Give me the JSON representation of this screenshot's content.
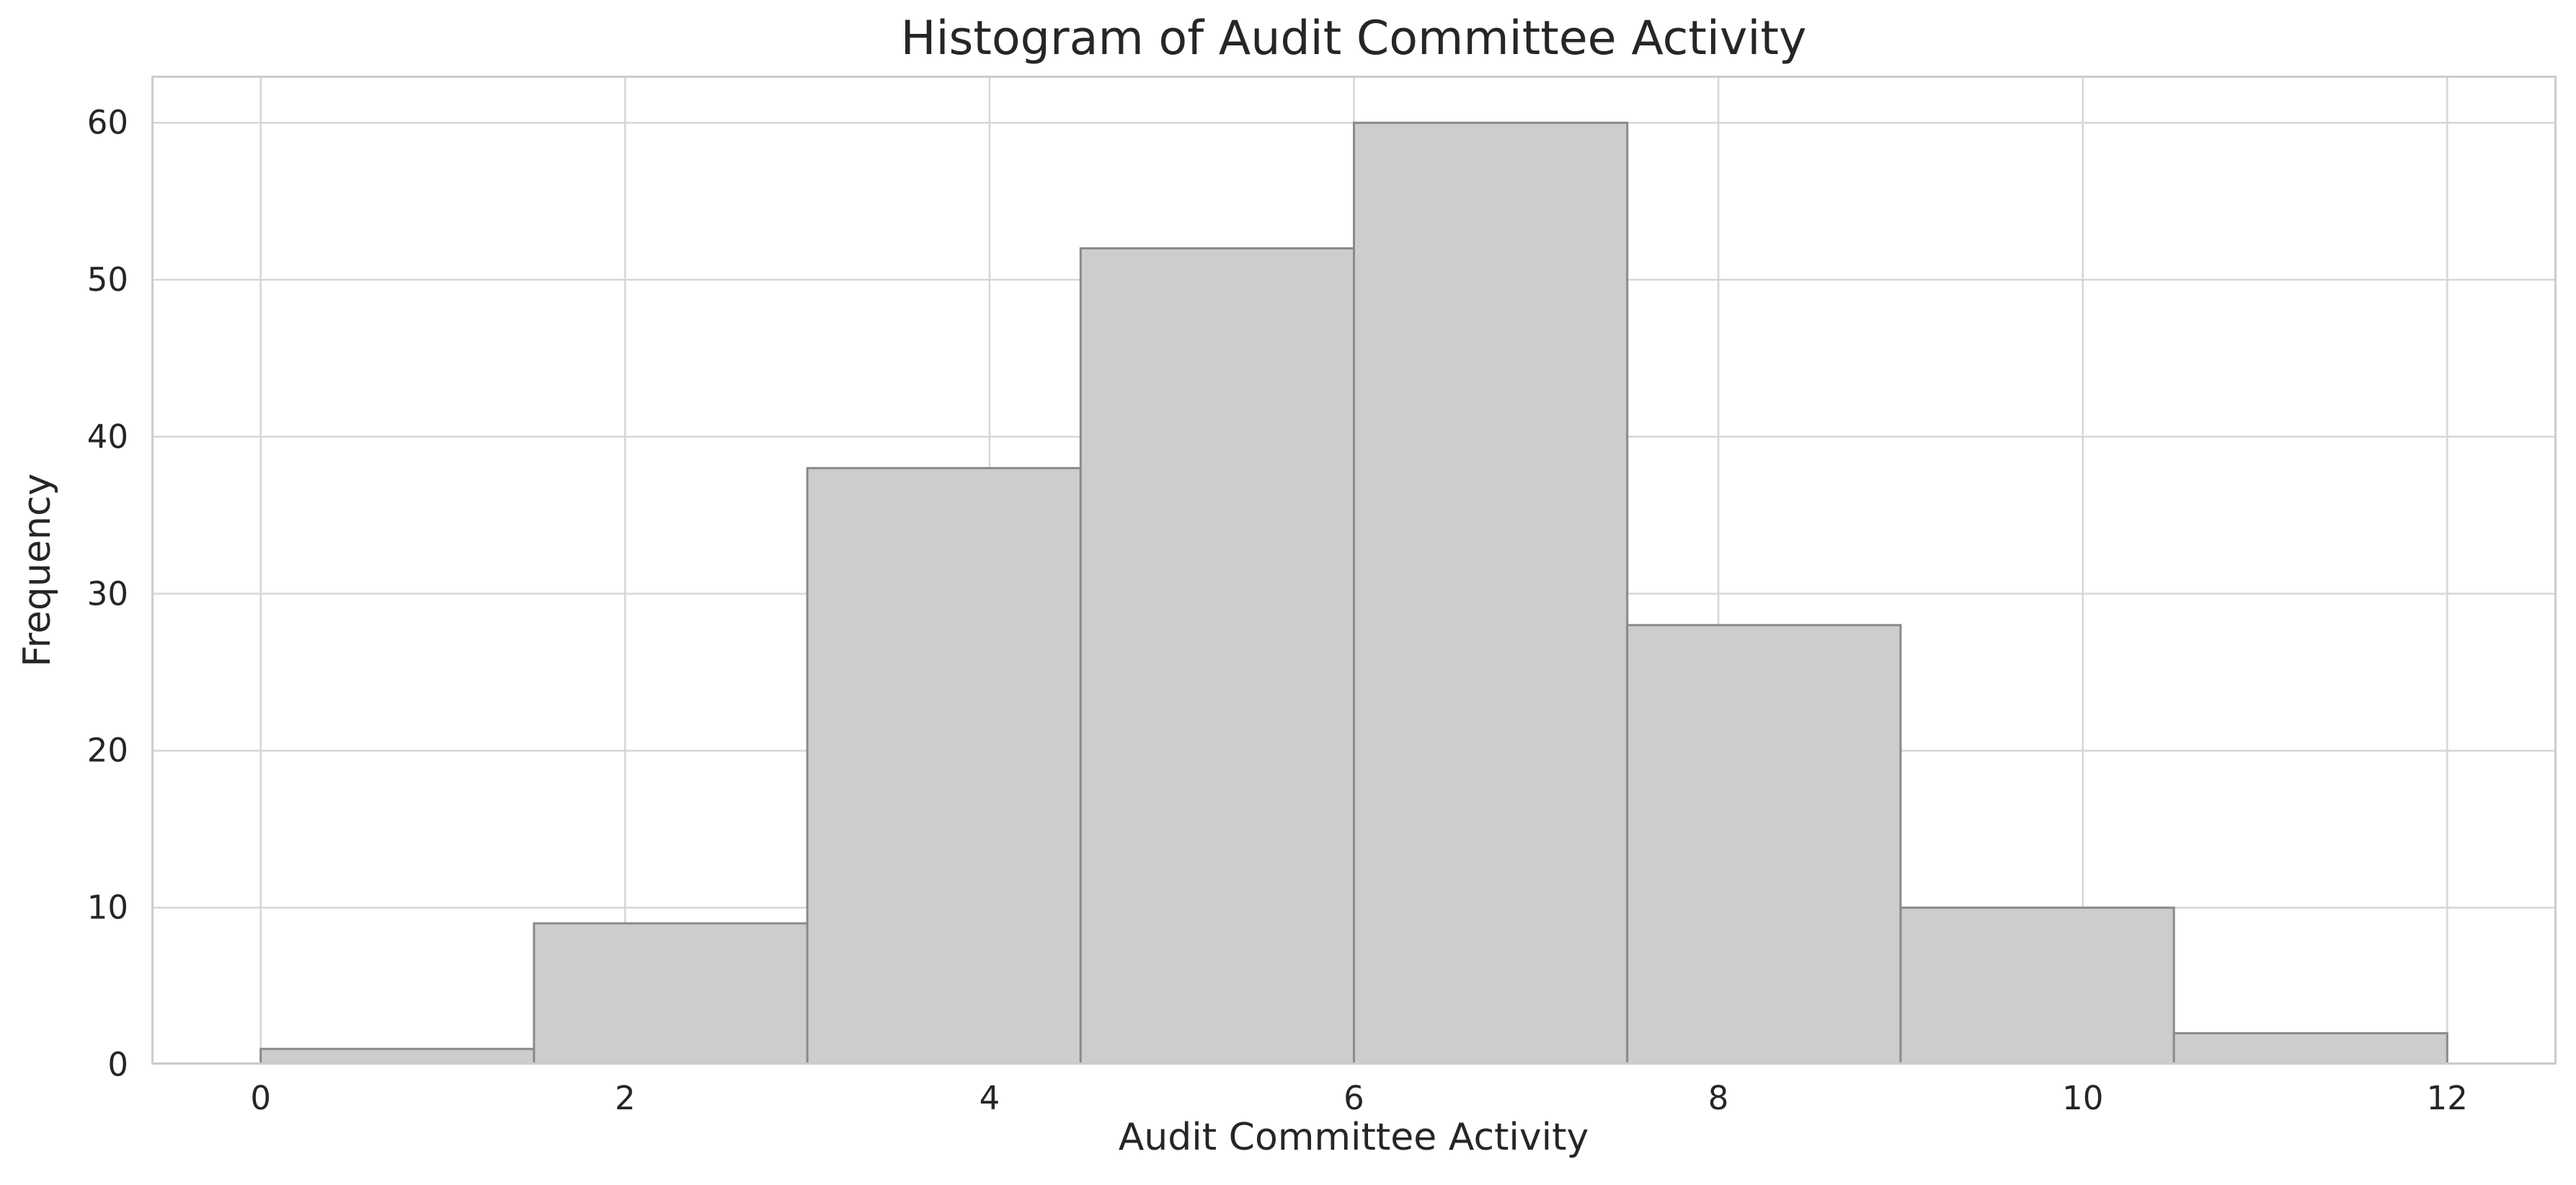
{
  "chart_data": {
    "type": "bar",
    "subtype": "histogram",
    "title": "Histogram of Audit Committee Activity",
    "xlabel": "Audit Committee Activity",
    "ylabel": "Frequency",
    "bin_edges": [
      0,
      1.5,
      3,
      4.5,
      6,
      7.5,
      9,
      10.5,
      12
    ],
    "counts": [
      1,
      9,
      38,
      52,
      60,
      28,
      10,
      2
    ],
    "xticks": [
      0,
      2,
      4,
      6,
      8,
      10,
      12
    ],
    "yticks": [
      0,
      10,
      20,
      30,
      40,
      50,
      60
    ],
    "xlim": [
      -0.6,
      12.6
    ],
    "ylim": [
      0,
      63
    ],
    "grid": true,
    "legend": false,
    "colors": {
      "background": "#ffffff",
      "bar_fill": "#cdcdcd",
      "bar_edge": "#8a8a8a",
      "gridline": "#d6d6d6",
      "spine": "#cccccc",
      "text": "#262626"
    }
  }
}
